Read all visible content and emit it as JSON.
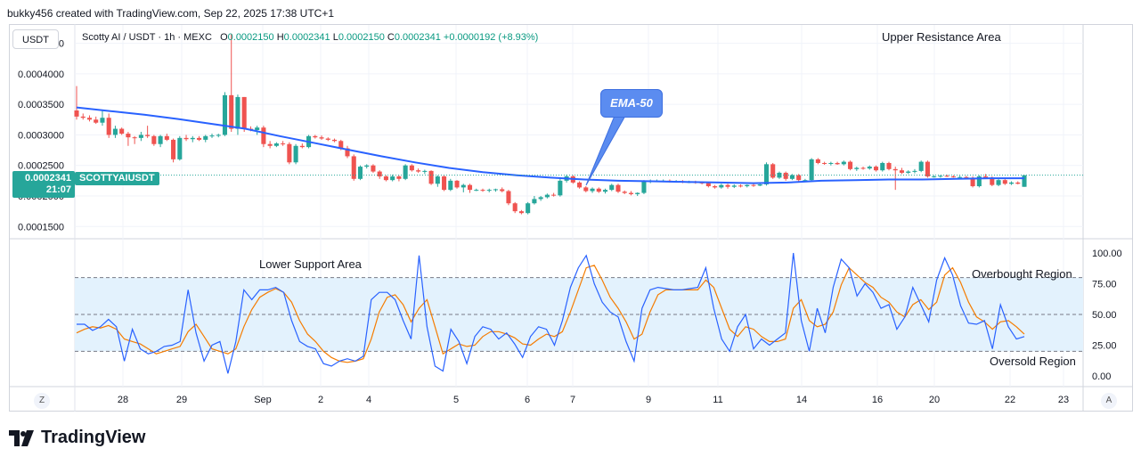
{
  "header": {
    "credit": "bukky456 created with TradingView.com, Sep 22, 2025 17:38 UTC+1"
  },
  "toolbar": {
    "currency": "USDT",
    "left_button": "Z",
    "right_button": "A"
  },
  "legend": {
    "symbol": "Scotty AI / USDT · 1h · MEXC",
    "o_label": "O",
    "o": "0.0002150",
    "h_label": "H",
    "h": "0.0002341",
    "l_label": "L",
    "l": "0.0002150",
    "c_label": "C",
    "c": "0.0002341",
    "change": "+0.0000192 (+8.93%)"
  },
  "price_label": {
    "value": "0.0002341",
    "countdown": "21:07",
    "symbol": "SCOTTYAIUSDT"
  },
  "annotations": {
    "upper_resistance": "Upper Resistance Area",
    "lower_support": "Lower Support Area",
    "ema": "EMA-50",
    "overbought": "Overbought Region",
    "oversold": "Oversold Region"
  },
  "brand": {
    "name": "TradingView"
  },
  "colors": {
    "up": "#26a69a",
    "down": "#ef5350",
    "ema": "#2962ff",
    "stoch_k": "#2962ff",
    "stoch_d": "#f57c00",
    "band": "#e3f2fd"
  },
  "chart_data": [
    {
      "type": "candlestick",
      "ylim": [
        0.00013,
        0.00048
      ],
      "yticks": [
        "0.0001500",
        "0.0002000",
        "0.0002500",
        "0.0003000",
        "0.0003500",
        "0.0004000",
        "0.0004500"
      ],
      "xticks": [
        "28",
        "29",
        "Sep",
        "2",
        "4",
        "5",
        "6",
        "7",
        "9",
        "11",
        "14",
        "16",
        "20",
        "22",
        "23"
      ],
      "candles": [
        [
          0.00034,
          0.00038,
          0.000325,
          0.00033
        ],
        [
          0.00033,
          0.000335,
          0.000325,
          0.000328
        ],
        [
          0.000328,
          0.000332,
          0.000322,
          0.000325
        ],
        [
          0.000325,
          0.00033,
          0.000318,
          0.00032
        ],
        [
          0.00032,
          0.00034,
          0.000315,
          0.000328
        ],
        [
          0.000328,
          0.000335,
          0.000295,
          0.0003
        ],
        [
          0.0003,
          0.000315,
          0.000295,
          0.00031
        ],
        [
          0.00031,
          0.000312,
          0.0003,
          0.000302
        ],
        [
          0.000302,
          0.000305,
          0.000282,
          0.000296
        ],
        [
          0.000296,
          0.000298,
          0.000285,
          0.000295
        ],
        [
          0.000295,
          0.000305,
          0.00029,
          0.0003
        ],
        [
          0.0003,
          0.000315,
          0.000295,
          0.000298
        ],
        [
          0.000298,
          0.0003,
          0.000282,
          0.000285
        ],
        [
          0.000285,
          0.0003,
          0.00028,
          0.000298
        ],
        [
          0.000298,
          0.000302,
          0.00029,
          0.000292
        ],
        [
          0.000292,
          0.000294,
          0.000255,
          0.00026
        ],
        [
          0.00026,
          0.000298,
          0.000258,
          0.000295
        ],
        [
          0.000295,
          0.0003,
          0.00029,
          0.000293
        ],
        [
          0.000293,
          0.000298,
          0.000288,
          0.000295
        ],
        [
          0.000295,
          0.000298,
          0.00029,
          0.000292
        ],
        [
          0.000292,
          0.0003,
          0.000288,
          0.000298
        ],
        [
          0.000298,
          0.000302,
          0.000295,
          0.000299
        ],
        [
          0.000299,
          0.000302,
          0.000296,
          0.0003
        ],
        [
          0.0003,
          0.00037,
          0.000298,
          0.000365
        ],
        [
          0.000365,
          0.000465,
          0.000305,
          0.00031
        ],
        [
          0.00031,
          0.000366,
          0.0003,
          0.000362
        ],
        [
          0.000362,
          0.000362,
          0.000305,
          0.00031
        ],
        [
          0.00031,
          0.000314,
          0.000306,
          0.000308
        ],
        [
          0.000308,
          0.000315,
          0.0003,
          0.000312
        ],
        [
          0.000312,
          0.000315,
          0.00028,
          0.000285
        ],
        [
          0.000285,
          0.00029,
          0.000278,
          0.000282
        ],
        [
          0.000282,
          0.000288,
          0.00028,
          0.000286
        ],
        [
          0.000286,
          0.00029,
          0.000282,
          0.000285
        ],
        [
          0.000285,
          0.000288,
          0.000252,
          0.000255
        ],
        [
          0.000255,
          0.000285,
          0.000252,
          0.000282
        ],
        [
          0.000282,
          0.000286,
          0.000278,
          0.00028
        ],
        [
          0.00028,
          0.0003,
          0.000278,
          0.000298
        ],
        [
          0.000298,
          0.0003,
          0.000294,
          0.000296
        ],
        [
          0.000296,
          0.000299,
          0.000292,
          0.000294
        ],
        [
          0.000294,
          0.000296,
          0.00029,
          0.000292
        ],
        [
          0.000292,
          0.000294,
          0.000288,
          0.00029
        ],
        [
          0.00029,
          0.000292,
          0.000275,
          0.000278
        ],
        [
          0.000278,
          0.000282,
          0.000262,
          0.000265
        ],
        [
          0.000265,
          0.000268,
          0.000225,
          0.000228
        ],
        [
          0.000228,
          0.00025,
          0.000226,
          0.000248
        ],
        [
          0.000248,
          0.000252,
          0.000245,
          0.00025
        ],
        [
          0.00025,
          0.000252,
          0.000238,
          0.00024
        ],
        [
          0.00024,
          0.000242,
          0.000228,
          0.000232
        ],
        [
          0.000232,
          0.000234,
          0.000224,
          0.000226
        ],
        [
          0.000226,
          0.000235,
          0.000224,
          0.000232
        ],
        [
          0.000232,
          0.000234,
          0.000224,
          0.000228
        ],
        [
          0.000228,
          0.000252,
          0.000226,
          0.00025
        ],
        [
          0.00025,
          0.000252,
          0.00024,
          0.000242
        ],
        [
          0.000242,
          0.000245,
          0.000238,
          0.00024
        ],
        [
          0.00024,
          0.000243,
          0.000236,
          0.000241
        ],
        [
          0.000241,
          0.000242,
          0.000218,
          0.00022
        ],
        [
          0.00022,
          0.000234,
          0.000215,
          0.000232
        ],
        [
          0.000232,
          0.000234,
          0.000208,
          0.00021
        ],
        [
          0.00021,
          0.000228,
          0.000208,
          0.000225
        ],
        [
          0.000225,
          0.000226,
          0.000212,
          0.000214
        ],
        [
          0.000214,
          0.00022,
          0.000206,
          0.000218
        ],
        [
          0.000218,
          0.00022,
          0.000205,
          0.00021
        ],
        [
          0.00021,
          0.000212,
          0.000208,
          0.00021
        ],
        [
          0.00021,
          0.000212,
          0.000207,
          0.000209
        ],
        [
          0.000209,
          0.000212,
          0.000206,
          0.00021
        ],
        [
          0.00021,
          0.000212,
          0.000207,
          0.000211
        ],
        [
          0.000211,
          0.000214,
          0.000206,
          0.000208
        ],
        [
          0.000208,
          0.00021,
          0.000185,
          0.000188
        ],
        [
          0.000188,
          0.00019,
          0.000172,
          0.000175
        ],
        [
          0.000175,
          0.000177,
          0.00017,
          0.000172
        ],
        [
          0.000172,
          0.00019,
          0.00017,
          0.000188
        ],
        [
          0.000188,
          0.0002,
          0.000186,
          0.000195
        ],
        [
          0.000195,
          0.0002,
          0.000192,
          0.000198
        ],
        [
          0.000198,
          0.000204,
          0.000196,
          0.000202
        ],
        [
          0.000202,
          0.000205,
          0.000199,
          0.000201
        ],
        [
          0.000201,
          0.000228,
          0.000199,
          0.000225
        ],
        [
          0.000225,
          0.000235,
          0.000222,
          0.000232
        ],
        [
          0.000232,
          0.000234,
          0.00022,
          0.000222
        ],
        [
          0.000222,
          0.000224,
          0.000212,
          0.000214
        ],
        [
          0.000214,
          0.000216,
          0.000206,
          0.000208
        ],
        [
          0.000208,
          0.000214,
          0.000205,
          0.000212
        ],
        [
          0.000212,
          0.000214,
          0.000205,
          0.000207
        ],
        [
          0.000207,
          0.000212,
          0.000204,
          0.00021
        ],
        [
          0.00021,
          0.00022,
          0.000208,
          0.000218
        ],
        [
          0.000218,
          0.00022,
          0.000205,
          0.000207
        ],
        [
          0.000207,
          0.000209,
          0.000203,
          0.000205
        ],
        [
          0.000205,
          0.000208,
          0.000201,
          0.000203
        ],
        [
          0.000203,
          0.000206,
          0.0002,
          0.000205
        ],
        [
          0.000205,
          0.000226,
          0.000203,
          0.000224
        ],
        [
          0.000224,
          0.000227,
          0.000221,
          0.000225
        ],
        [
          0.000225,
          0.000227,
          0.000223,
          0.000225
        ],
        [
          0.000225,
          0.000227,
          0.000223,
          0.000225
        ],
        [
          0.000225,
          0.000227,
          0.000222,
          0.000224
        ],
        [
          0.000224,
          0.000226,
          0.000222,
          0.000224
        ],
        [
          0.000224,
          0.000226,
          0.000221,
          0.000223
        ],
        [
          0.000223,
          0.000225,
          0.000221,
          0.000223
        ],
        [
          0.000223,
          0.000225,
          0.00022,
          0.000222
        ],
        [
          0.000222,
          0.000224,
          0.000219,
          0.000221
        ],
        [
          0.000221,
          0.000223,
          0.000214,
          0.000216
        ],
        [
          0.000216,
          0.000218,
          0.000212,
          0.000214
        ],
        [
          0.000214,
          0.00022,
          0.000212,
          0.000218
        ],
        [
          0.000218,
          0.00022,
          0.000212,
          0.000215
        ],
        [
          0.000215,
          0.000219,
          0.000213,
          0.000217
        ],
        [
          0.000217,
          0.000219,
          0.000214,
          0.000216
        ],
        [
          0.000216,
          0.000219,
          0.000214,
          0.000218
        ],
        [
          0.000218,
          0.00022,
          0.000215,
          0.000217
        ],
        [
          0.000217,
          0.00022,
          0.000216,
          0.000219
        ],
        [
          0.000219,
          0.000255,
          0.000217,
          0.000252
        ],
        [
          0.000252,
          0.000254,
          0.000228,
          0.00023
        ],
        [
          0.00023,
          0.00024,
          0.000228,
          0.000238
        ],
        [
          0.000238,
          0.00024,
          0.000225,
          0.000228
        ],
        [
          0.000228,
          0.000236,
          0.000226,
          0.000234
        ],
        [
          0.000234,
          0.000236,
          0.000224,
          0.000226
        ],
        [
          0.000226,
          0.000228,
          0.000223,
          0.000226
        ],
        [
          0.000226,
          0.000262,
          0.000224,
          0.00026
        ],
        [
          0.00026,
          0.000262,
          0.000252,
          0.000254
        ],
        [
          0.000254,
          0.000256,
          0.000251,
          0.000253
        ],
        [
          0.000253,
          0.000256,
          0.00025,
          0.000254
        ],
        [
          0.000254,
          0.000256,
          0.000251,
          0.000252
        ],
        [
          0.000252,
          0.000258,
          0.00025,
          0.000256
        ],
        [
          0.000256,
          0.000258,
          0.000242,
          0.000244
        ],
        [
          0.000244,
          0.000248,
          0.000241,
          0.000246
        ],
        [
          0.000246,
          0.000248,
          0.000243,
          0.000245
        ],
        [
          0.000245,
          0.00025,
          0.000243,
          0.000248
        ],
        [
          0.000248,
          0.00025,
          0.00024,
          0.000242
        ],
        [
          0.000242,
          0.000256,
          0.00024,
          0.000254
        ],
        [
          0.000254,
          0.000256,
          0.000242,
          0.000244
        ],
        [
          0.000244,
          0.000248,
          0.00021,
          0.000242
        ],
        [
          0.000242,
          0.000246,
          0.000236,
          0.000238
        ],
        [
          0.000238,
          0.000242,
          0.000236,
          0.00024
        ],
        [
          0.00024,
          0.000244,
          0.000237,
          0.000241
        ],
        [
          0.000241,
          0.000258,
          0.000239,
          0.000256
        ],
        [
          0.000256,
          0.000258,
          0.00023,
          0.000232
        ],
        [
          0.000232,
          0.000234,
          0.00023,
          0.000232
        ],
        [
          0.000232,
          0.000234,
          0.00023,
          0.000233
        ],
        [
          0.000233,
          0.000235,
          0.000231,
          0.000232
        ],
        [
          0.000232,
          0.000234,
          0.00023,
          0.000231
        ],
        [
          0.000231,
          0.000233,
          0.000229,
          0.000231
        ],
        [
          0.000231,
          0.000233,
          0.000228,
          0.00023
        ],
        [
          0.00023,
          0.000232,
          0.000214,
          0.000216
        ],
        [
          0.000216,
          0.000234,
          0.000214,
          0.000232
        ],
        [
          0.000232,
          0.000236,
          0.000228,
          0.00023
        ],
        [
          0.00023,
          0.000232,
          0.000216,
          0.000218
        ],
        [
          0.000218,
          0.000228,
          0.000216,
          0.000226
        ],
        [
          0.000226,
          0.000228,
          0.000218,
          0.00022
        ],
        [
          0.00022,
          0.000224,
          0.000218,
          0.000222
        ],
        [
          0.000222,
          0.000224,
          0.000219,
          0.00022
        ],
        [
          0.000215,
          0.000234,
          0.000215,
          0.000234
        ]
      ],
      "ema50": [
        0.000345,
        0.000339,
        0.000333,
        0.000326,
        0.000318,
        0.00031,
        0.000298,
        0.000287,
        0.000276,
        0.000265,
        0.000255,
        0.000246,
        0.000239,
        0.000234,
        0.00023,
        0.000227,
        0.000225,
        0.000224,
        0.000223,
        0.000222,
        0.000221,
        0.000222,
        0.000225,
        0.000226,
        0.000227,
        0.000227,
        0.000228,
        0.000229,
        0.000229
      ]
    },
    {
      "type": "line",
      "name": "stochastic",
      "ylim": [
        0,
        100
      ],
      "yticks": [
        "100.00",
        "75.00",
        "50.00",
        "25.00",
        "0.00"
      ],
      "levels": [
        80,
        50,
        20
      ],
      "k": [
        42,
        42,
        37,
        40,
        46,
        40,
        12,
        38,
        22,
        18,
        20,
        24,
        25,
        28,
        70,
        35,
        12,
        25,
        28,
        2,
        28,
        70,
        62,
        70,
        70,
        72,
        68,
        45,
        28,
        24,
        22,
        10,
        8,
        12,
        14,
        12,
        16,
        62,
        68,
        68,
        62,
        45,
        30,
        98,
        40,
        8,
        4,
        38,
        28,
        10,
        32,
        40,
        38,
        30,
        35,
        26,
        15,
        32,
        40,
        38,
        25,
        45,
        72,
        88,
        98,
        75,
        60,
        52,
        48,
        28,
        12,
        55,
        70,
        72,
        71,
        70,
        70,
        71,
        72,
        88,
        55,
        30,
        20,
        40,
        50,
        22,
        30,
        25,
        30,
        35,
        100,
        45,
        20,
        55,
        35,
        72,
        95,
        88,
        65,
        75,
        68,
        55,
        58,
        38,
        48,
        72,
        58,
        44,
        78,
        96,
        82,
        57,
        43,
        42,
        45,
        22,
        58,
        40,
        30,
        32
      ],
      "d": [
        35,
        38,
        40,
        39,
        41,
        38,
        30,
        28,
        26,
        22,
        18,
        20,
        22,
        24,
        36,
        42,
        32,
        22,
        20,
        18,
        22,
        40,
        54,
        64,
        68,
        71,
        68,
        60,
        45,
        34,
        28,
        20,
        15,
        12,
        11,
        12,
        14,
        30,
        52,
        64,
        66,
        58,
        44,
        55,
        62,
        40,
        18,
        22,
        26,
        24,
        25,
        32,
        36,
        36,
        34,
        31,
        26,
        25,
        30,
        34,
        32,
        36,
        52,
        70,
        88,
        90,
        78,
        64,
        55,
        44,
        30,
        34,
        52,
        66,
        70,
        70,
        70,
        70,
        70,
        78,
        72,
        55,
        38,
        32,
        40,
        38,
        32,
        28,
        28,
        30,
        55,
        62,
        45,
        40,
        42,
        52,
        74,
        88,
        82,
        76,
        72,
        64,
        60,
        52,
        48,
        58,
        62,
        54,
        60,
        82,
        88,
        76,
        60,
        48,
        44,
        38,
        44,
        45,
        40,
        34
      ]
    }
  ]
}
